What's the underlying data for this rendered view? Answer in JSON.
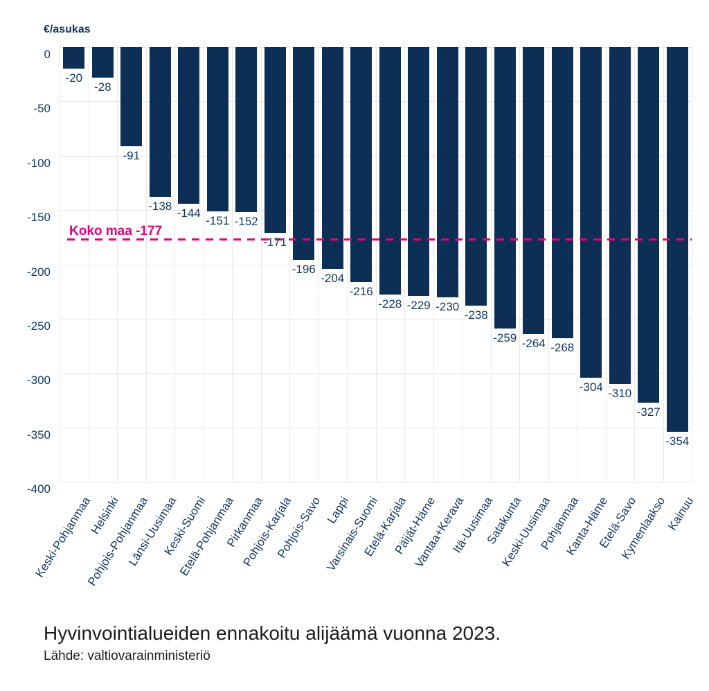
{
  "chart_data": {
    "type": "bar",
    "title": "Hyvinvointialueiden ennakoitu alijäämä vuonna 2023.",
    "unit_label": "€/asukas",
    "xlabel": "",
    "ylabel": "€/asukas",
    "ylim": [
      0,
      -400
    ],
    "grid": true,
    "legend": "none",
    "categories": [
      "Keski-Pohjanmaa",
      "Helsinki",
      "Pohjois-Pohjanmaa",
      "Länsi-Uusimaa",
      "Keski-Suomi",
      "Etelä-Pohjanmaa",
      "Pirkanmaa",
      "Pohjois-Karjala",
      "Pohjois-Savo",
      "Lappi",
      "Varsinais-Suomi",
      "Etelä-Karjala",
      "Päijät-Häme",
      "Vantaa+Kerava",
      "Itä-Uusimaa",
      "Satakunta",
      "Keski-Uusimaa",
      "Pohjanmaa",
      "Kanta-Häme",
      "Etelä-Savo",
      "Kymenlaakso",
      "Kainuu"
    ],
    "values": [
      -20,
      -28,
      -91,
      -138,
      -144,
      -151,
      -152,
      -171,
      -196,
      -204,
      -216,
      -228,
      -229,
      -230,
      -238,
      -259,
      -264,
      -268,
      -304,
      -310,
      -327,
      -354
    ],
    "yticks": [
      0,
      -50,
      -100,
      -150,
      -200,
      -250,
      -300,
      -350,
      -400
    ],
    "ytick_labels": [
      "0",
      "-50",
      "-100",
      "-150",
      "-200",
      "-250",
      "-300",
      "-350",
      "-400"
    ],
    "reference_line": {
      "label": "Koko maa -177",
      "value": -177
    },
    "colors": {
      "bar": "#0e2f55",
      "reference": "#e6007d",
      "grid": "#e8e8e8",
      "text": "#133663"
    }
  },
  "caption": {
    "title": "Hyvinvointialueiden ennakoitu alijäämä vuonna 2023.",
    "source": "Lähde: valtiovarainministeriö"
  }
}
